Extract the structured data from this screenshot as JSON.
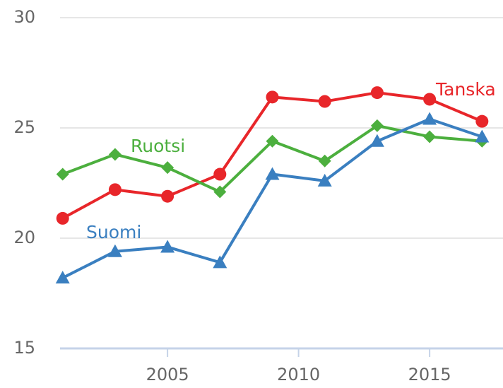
{
  "chart_data": {
    "type": "line",
    "x": [
      2001,
      2003,
      2005,
      2007,
      2009,
      2011,
      2013,
      2015,
      2017
    ],
    "series": [
      {
        "name": "Tanska",
        "color": "#e8262a",
        "marker": "circle",
        "values": [
          20.9,
          22.2,
          21.9,
          22.9,
          26.4,
          26.2,
          26.6,
          26.3,
          25.3
        ]
      },
      {
        "name": "Ruotsi",
        "color": "#4caf3e",
        "marker": "diamond",
        "values": [
          22.9,
          23.8,
          23.2,
          22.1,
          24.4,
          23.5,
          25.1,
          24.6,
          24.4
        ]
      },
      {
        "name": "Suomi",
        "color": "#3a7fc0",
        "marker": "triangle",
        "values": [
          18.2,
          19.4,
          19.6,
          18.9,
          22.9,
          22.6,
          24.4,
          25.4,
          24.6
        ]
      }
    ],
    "xlim": [
      2000.9,
      2017.8
    ],
    "xticks": [
      2005,
      2010,
      2015
    ],
    "ylim": [
      15,
      30
    ],
    "yticks": [
      15,
      20,
      25,
      30
    ],
    "grid": true
  }
}
